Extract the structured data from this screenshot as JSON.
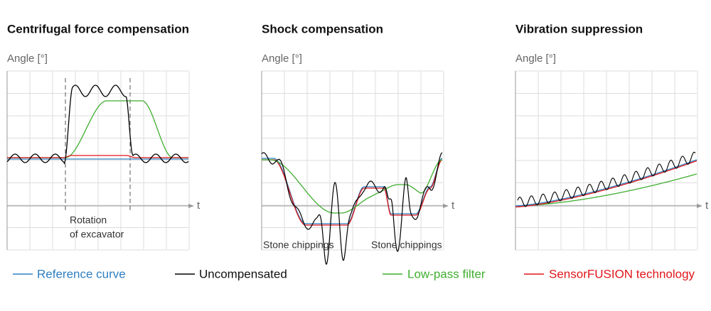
{
  "panels": [
    {
      "title": "Centrifugal force compensation",
      "y_label": "Angle [°]",
      "x_label": "t",
      "annotations": [
        "Rotation",
        "of excavator"
      ]
    },
    {
      "title": "Shock compensation",
      "y_label": "Angle [°]",
      "x_label": "t",
      "annotations": [
        "Stone chippings",
        "Stone chippings"
      ]
    },
    {
      "title": "Vibration suppression",
      "y_label": "Angle [°]",
      "x_label": "t",
      "annotations": []
    }
  ],
  "legend": [
    "Reference curve",
    "Uncompensated",
    "Low-pass filter",
    "SensorFUSION technology"
  ]
}
